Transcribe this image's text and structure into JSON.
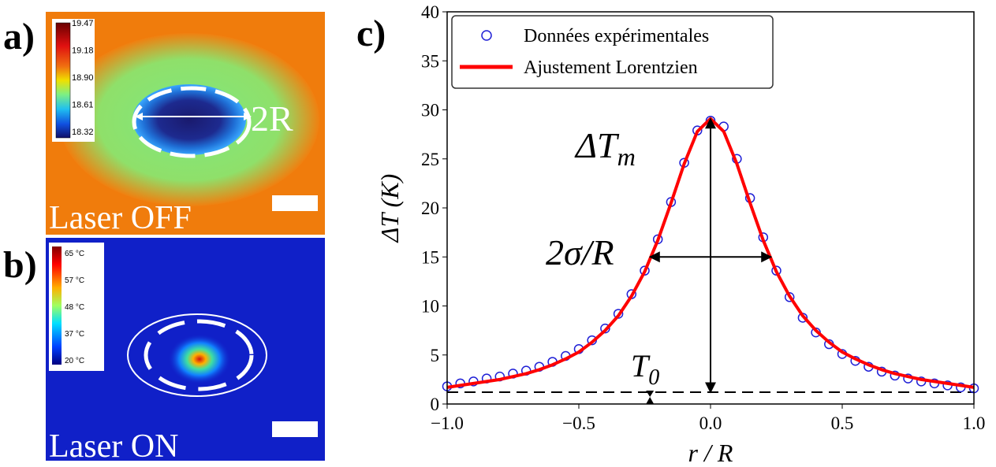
{
  "panels": {
    "a": {
      "label": "a)",
      "caption": "Laser OFF",
      "annotation": "2R",
      "colorbar_ticks": [
        "19.47",
        "19.18",
        "18.90",
        "18.61",
        "18.32"
      ]
    },
    "b": {
      "label": "b)",
      "caption": "Laser ON",
      "colorbar_ticks": [
        "65 °C",
        "57 °C",
        "48 °C",
        "37 °C",
        "20 °C"
      ]
    }
  },
  "chart_data": {
    "type": "scatter-line",
    "label": "c)",
    "xlabel": "r / R",
    "ylabel": "ΔT (K)",
    "xlim": [
      -1,
      1
    ],
    "ylim": [
      0,
      40
    ],
    "xticks": [
      {
        "value": -1,
        "label": "−1.0"
      },
      {
        "value": -0.5,
        "label": "−0.5"
      },
      {
        "value": 0,
        "label": "0.0"
      },
      {
        "value": 0.5,
        "label": "0.5"
      },
      {
        "value": 1,
        "label": "1.0"
      }
    ],
    "yticks": [
      0,
      5,
      10,
      15,
      20,
      25,
      30,
      35,
      40
    ],
    "legend": "upper left",
    "x": [
      -1.0,
      -0.95,
      -0.9,
      -0.85,
      -0.8,
      -0.75,
      -0.7,
      -0.65,
      -0.6,
      -0.55,
      -0.5,
      -0.45,
      -0.4,
      -0.35,
      -0.3,
      -0.25,
      -0.2,
      -0.15,
      -0.1,
      -0.05,
      0,
      0.05,
      0.1,
      0.15,
      0.2,
      0.25,
      0.3,
      0.35,
      0.4,
      0.45,
      0.5,
      0.55,
      0.6,
      0.65,
      0.7,
      0.75,
      0.8,
      0.85,
      0.9,
      0.95,
      1.0
    ],
    "series": [
      {
        "name": "Données expérimentales",
        "kind": "scatter",
        "color": "#1f1fd6",
        "values": [
          1.8,
          2.1,
          2.3,
          2.6,
          2.8,
          3.1,
          3.4,
          3.8,
          4.3,
          4.9,
          5.6,
          6.5,
          7.7,
          9.2,
          11.2,
          13.6,
          16.8,
          20.6,
          24.6,
          27.9,
          28.9,
          28.3,
          25.0,
          21.0,
          17.0,
          13.6,
          10.9,
          8.8,
          7.3,
          6.1,
          5.1,
          4.4,
          3.8,
          3.3,
          2.9,
          2.6,
          2.3,
          2.1,
          1.9,
          1.7,
          1.6
        ]
      },
      {
        "name": "Ajustement Lorentzien",
        "kind": "line",
        "color": "#ff0000",
        "values": [
          1.7,
          1.9,
          2.1,
          2.3,
          2.5,
          2.8,
          3.1,
          3.5,
          4.0,
          4.6,
          5.3,
          6.3,
          7.5,
          9.0,
          11.0,
          13.5,
          16.7,
          20.5,
          24.5,
          27.8,
          29.1,
          27.8,
          24.5,
          20.5,
          16.7,
          13.5,
          11.0,
          9.0,
          7.5,
          6.3,
          5.3,
          4.6,
          4.0,
          3.5,
          3.1,
          2.8,
          2.5,
          2.3,
          2.1,
          1.9,
          1.7
        ]
      }
    ],
    "baseline": 1.2,
    "peak_arrow": {
      "x": 0,
      "y": [
        1.2,
        29.1
      ]
    },
    "width_arrow": {
      "y": 15,
      "x": [
        -0.23,
        0.23
      ]
    },
    "t0_marker_x": -0.23,
    "annotations": {
      "peak": {
        "base": "ΔT",
        "sub": "m"
      },
      "width": "2σ/R",
      "offset": {
        "base": "T",
        "sub": "0"
      }
    }
  }
}
